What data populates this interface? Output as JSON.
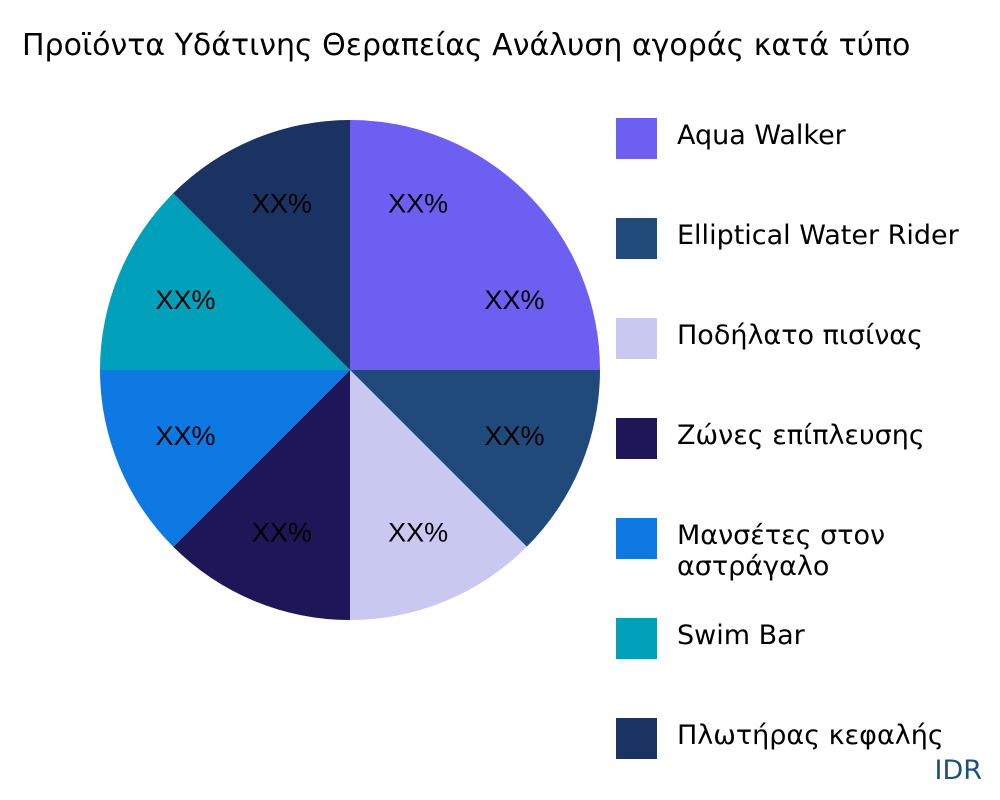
{
  "chart_data": {
    "type": "pie",
    "title": "Προϊόντα Υδάτινης Θεραπείας Ανάλυση αγοράς κατά τύπο",
    "slices": [
      {
        "name": "Aqua Walker",
        "value": 25,
        "label": "XX%",
        "color": "#6c5ff2"
      },
      {
        "name": "Elliptical Water Rider",
        "value": 12.5,
        "label": "XX%",
        "color": "#1f4a7a"
      },
      {
        "name": "Ποδήλατο πισίνας",
        "value": 12.5,
        "label": "XX%",
        "color": "#c8c8f0"
      },
      {
        "name": "Ζώνες επίπλευσης",
        "value": 12.5,
        "label": "XX%",
        "color": "#1e1656"
      },
      {
        "name": "Μανσέτες στον αστράγαλο",
        "value": 12.5,
        "label": "XX%",
        "color": "#0e79e3"
      },
      {
        "name": "Swim Bar",
        "value": 12.5,
        "label": "XX%",
        "color": "#00a0ba"
      },
      {
        "name": "Πλωτήρας κεφαλής",
        "value": 12.5,
        "label": "XX%",
        "color": "#1b3363"
      }
    ],
    "legend_position": "right",
    "start_angle": "12 o'clock",
    "direction": "counterclockwise-from-last"
  },
  "legend": {
    "items": [
      {
        "label": "Aqua Walker",
        "color": "#6c5ff2"
      },
      {
        "label": "Elliptical Water Rider",
        "color": "#1f4a7a"
      },
      {
        "label": "Ποδήλατο πισίνας",
        "color": "#c8c8f0"
      },
      {
        "label": "Ζώνες επίπλευσης",
        "color": "#1e1656"
      },
      {
        "label": "Μανσέτες στον αστράγαλο",
        "color": "#0e79e3"
      },
      {
        "label": "Swim Bar",
        "color": "#00a0ba"
      },
      {
        "label": "Πλωτήρας κεφαλής",
        "color": "#1b3363"
      }
    ]
  },
  "watermark": "IDR"
}
